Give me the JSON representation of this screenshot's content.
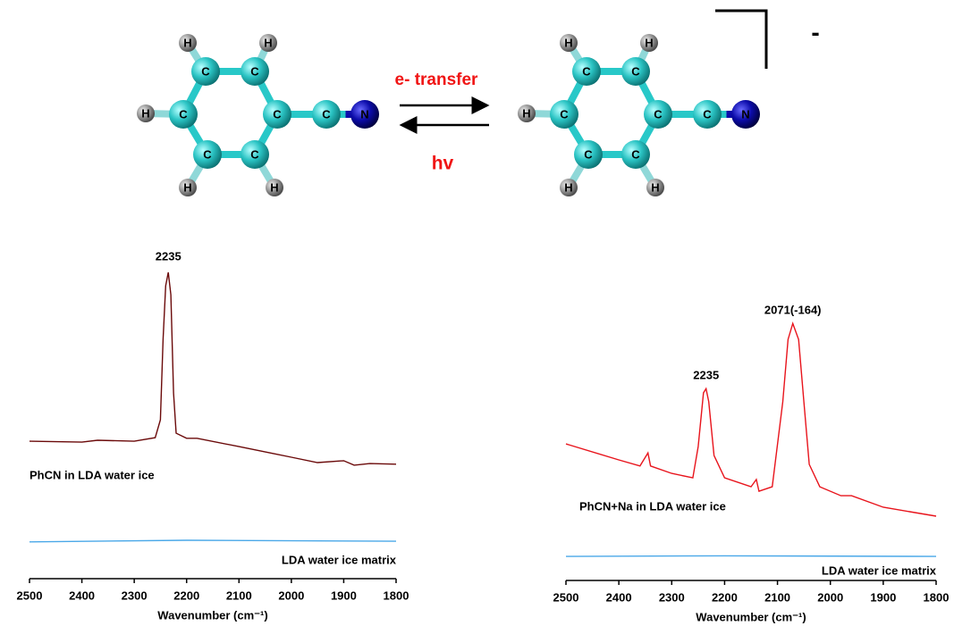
{
  "scheme": {
    "forward": "e- transfer",
    "backward": "hv",
    "charge": "-",
    "molecules": [
      {
        "atoms": [
          "H",
          "H",
          "C",
          "C",
          "H",
          "C",
          "C",
          "C",
          "N",
          "C",
          "C",
          "H",
          "H"
        ]
      },
      {
        "atoms": [
          "H",
          "H",
          "C",
          "C",
          "H",
          "C",
          "C",
          "C",
          "N",
          "C",
          "C",
          "H",
          "H"
        ]
      }
    ]
  },
  "chart_data": [
    {
      "type": "line",
      "xlabel": "Wavenumber (cm⁻¹)",
      "xlim": [
        2500,
        1800
      ],
      "xticks": [
        2500,
        2400,
        2300,
        2200,
        2100,
        2000,
        1900,
        1800
      ],
      "ylim": [
        0,
        1
      ],
      "annotations": [
        "2235"
      ],
      "series": [
        {
          "name": "PhCN in LDA water ice",
          "color": "#6b0a0a",
          "x": [
            2500,
            2400,
            2370,
            2300,
            2260,
            2250,
            2245,
            2240,
            2235,
            2230,
            2225,
            2220,
            2200,
            2180,
            2100,
            2000,
            1950,
            1900,
            1880,
            1850,
            1800
          ],
          "values": [
            0.43,
            0.427,
            0.433,
            0.43,
            0.441,
            0.497,
            0.749,
            0.916,
            0.958,
            0.888,
            0.581,
            0.455,
            0.439,
            0.439,
            0.413,
            0.38,
            0.363,
            0.369,
            0.355,
            0.36,
            0.358
          ]
        },
        {
          "name": "LDA water ice matrix",
          "color": "#4aa8e8",
          "x": [
            2500,
            2200,
            1800
          ],
          "values": [
            0.115,
            0.12,
            0.117
          ]
        }
      ]
    },
    {
      "type": "line",
      "xlabel": "Wavenumber (cm⁻¹)",
      "xlim": [
        2500,
        1800
      ],
      "xticks": [
        2500,
        2400,
        2300,
        2200,
        2100,
        2000,
        1900,
        1800
      ],
      "ylim": [
        0,
        1
      ],
      "annotations": [
        "2235",
        "2071(-164)"
      ],
      "series": [
        {
          "name": "PhCN+Na in LDA water ice",
          "color": "#e8141c",
          "x": [
            2500,
            2400,
            2360,
            2345,
            2340,
            2300,
            2260,
            2250,
            2240,
            2235,
            2230,
            2220,
            2200,
            2150,
            2140,
            2135,
            2110,
            2090,
            2080,
            2071,
            2060,
            2050,
            2040,
            2020,
            1980,
            1960,
            1900,
            1850,
            1800
          ],
          "values": [
            0.427,
            0.377,
            0.358,
            0.399,
            0.358,
            0.335,
            0.321,
            0.419,
            0.587,
            0.6,
            0.559,
            0.391,
            0.321,
            0.293,
            0.316,
            0.279,
            0.293,
            0.559,
            0.754,
            0.804,
            0.754,
            0.559,
            0.363,
            0.293,
            0.265,
            0.265,
            0.229,
            0.215,
            0.201
          ]
        },
        {
          "name": "LDA water ice matrix",
          "color": "#4aa8e8",
          "x": [
            2500,
            2200,
            1800
          ],
          "values": [
            0.075,
            0.077,
            0.075
          ]
        }
      ]
    }
  ]
}
